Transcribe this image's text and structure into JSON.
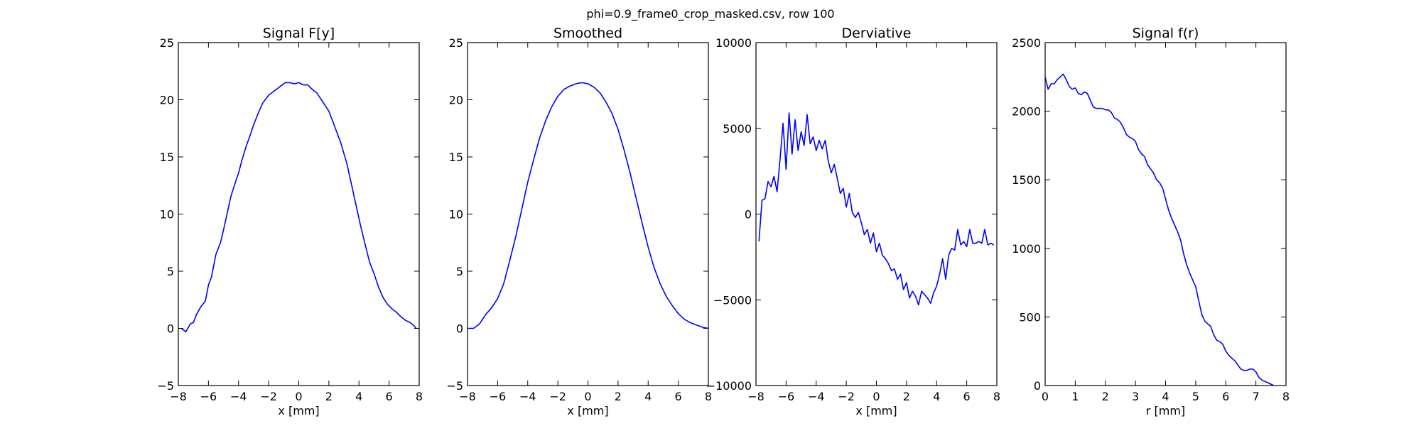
{
  "figure_title": "phi=0.9_frame0_crop_masked.csv, row 100",
  "colors": {
    "line": "#0000ff",
    "axes": "#000000",
    "background": "#ffffff"
  },
  "chart_data": [
    {
      "type": "line",
      "title": "Signal F[y]",
      "xlabel": "x [mm]",
      "ylabel": "",
      "xlim": [
        -8,
        8
      ],
      "ylim": [
        -5,
        25
      ],
      "xticks": [
        -8,
        -6,
        -4,
        -2,
        0,
        2,
        4,
        6,
        8
      ],
      "xtick_labels": [
        "−8",
        "−6",
        "−4",
        "−2",
        "0",
        "2",
        "4",
        "6",
        "8"
      ],
      "yticks": [
        -5,
        0,
        5,
        10,
        15,
        20,
        25
      ],
      "ytick_labels": [
        "−5",
        "0",
        "5",
        "10",
        "15",
        "20",
        "25"
      ],
      "grid": false,
      "series": [
        {
          "x": [
            -7.8,
            -7.5,
            -7.2,
            -7.0,
            -6.8,
            -6.5,
            -6.2,
            -6.0,
            -5.8,
            -5.5,
            -5.2,
            -5.0,
            -4.8,
            -4.5,
            -4.2,
            -4.0,
            -3.8,
            -3.5,
            -3.2,
            -3.0,
            -2.7,
            -2.4,
            -2.0,
            -1.6,
            -1.2,
            -0.9,
            -0.6,
            -0.3,
            0.0,
            0.3,
            0.6,
            0.9,
            1.2,
            1.6,
            2.0,
            2.4,
            2.8,
            3.2,
            3.5,
            3.8,
            4.1,
            4.4,
            4.7,
            5.0,
            5.3,
            5.6,
            5.9,
            6.2,
            6.5,
            6.8,
            7.1,
            7.4,
            7.6,
            7.8
          ],
          "y": [
            0.0,
            -0.3,
            0.4,
            0.5,
            1.2,
            1.9,
            2.4,
            3.8,
            4.5,
            6.5,
            7.5,
            8.6,
            9.8,
            11.6,
            12.8,
            13.6,
            14.6,
            15.9,
            17.0,
            17.8,
            18.8,
            19.7,
            20.4,
            20.8,
            21.2,
            21.5,
            21.5,
            21.4,
            21.5,
            21.3,
            21.3,
            20.9,
            20.6,
            19.8,
            19.0,
            17.6,
            16.2,
            14.4,
            12.6,
            10.8,
            9.0,
            7.4,
            5.8,
            4.8,
            3.6,
            2.7,
            2.1,
            1.7,
            1.4,
            1.0,
            0.7,
            0.5,
            0.3,
            0.0
          ]
        }
      ]
    },
    {
      "type": "line",
      "title": "Smoothed",
      "xlabel": "x [mm]",
      "ylabel": "",
      "xlim": [
        -8,
        8
      ],
      "ylim": [
        -5,
        25
      ],
      "xticks": [
        -8,
        -6,
        -4,
        -2,
        0,
        2,
        4,
        6,
        8
      ],
      "xtick_labels": [
        "−8",
        "−6",
        "−4",
        "−2",
        "0",
        "2",
        "4",
        "6",
        "8"
      ],
      "yticks": [
        -5,
        0,
        5,
        10,
        15,
        20,
        25
      ],
      "ytick_labels": [
        "−5",
        "0",
        "5",
        "10",
        "15",
        "20",
        "25"
      ],
      "grid": false,
      "series": [
        {
          "x": [
            -8.0,
            -7.6,
            -7.2,
            -6.8,
            -6.4,
            -6.0,
            -5.6,
            -5.2,
            -4.8,
            -4.4,
            -4.0,
            -3.6,
            -3.2,
            -2.8,
            -2.4,
            -2.0,
            -1.6,
            -1.2,
            -0.8,
            -0.4,
            0.0,
            0.4,
            0.8,
            1.2,
            1.6,
            2.0,
            2.4,
            2.8,
            3.2,
            3.6,
            4.0,
            4.4,
            4.8,
            5.2,
            5.6,
            6.0,
            6.4,
            6.8,
            7.2,
            7.6,
            8.0
          ],
          "y": [
            0.0,
            0.0,
            0.4,
            1.2,
            1.8,
            2.6,
            3.9,
            5.9,
            8.0,
            10.4,
            12.8,
            14.8,
            16.7,
            18.2,
            19.4,
            20.3,
            20.9,
            21.2,
            21.4,
            21.5,
            21.4,
            21.1,
            20.6,
            19.8,
            18.8,
            17.4,
            15.6,
            13.6,
            11.4,
            9.2,
            7.1,
            5.3,
            3.9,
            2.8,
            2.0,
            1.3,
            0.8,
            0.5,
            0.3,
            0.1,
            0.0
          ]
        }
      ]
    },
    {
      "type": "line",
      "title": "Derviative",
      "xlabel": "x [mm]",
      "ylabel": "",
      "xlim": [
        -8,
        8
      ],
      "ylim": [
        -10000,
        10000
      ],
      "xticks": [
        -8,
        -6,
        -4,
        -2,
        0,
        2,
        4,
        6,
        8
      ],
      "xtick_labels": [
        "−8",
        "−6",
        "−4",
        "−2",
        "0",
        "2",
        "4",
        "6",
        "8"
      ],
      "yticks": [
        -10000,
        -5000,
        0,
        5000,
        10000
      ],
      "ytick_labels": [
        "−10000",
        "−5000",
        "0",
        "5000",
        "10000"
      ],
      "grid": false,
      "series": [
        {
          "x": [
            -7.8,
            -7.6,
            -7.4,
            -7.2,
            -7.0,
            -6.8,
            -6.6,
            -6.4,
            -6.2,
            -6.0,
            -5.8,
            -5.6,
            -5.4,
            -5.2,
            -5.0,
            -4.8,
            -4.6,
            -4.4,
            -4.2,
            -4.0,
            -3.8,
            -3.6,
            -3.4,
            -3.2,
            -3.0,
            -2.8,
            -2.6,
            -2.4,
            -2.2,
            -2.0,
            -1.8,
            -1.6,
            -1.4,
            -1.2,
            -1.0,
            -0.8,
            -0.6,
            -0.4,
            -0.2,
            0.0,
            0.2,
            0.4,
            0.6,
            0.8,
            1.0,
            1.2,
            1.4,
            1.6,
            1.8,
            2.0,
            2.2,
            2.4,
            2.6,
            2.8,
            3.0,
            3.2,
            3.4,
            3.6,
            3.8,
            4.0,
            4.2,
            4.4,
            4.6,
            4.8,
            5.0,
            5.2,
            5.4,
            5.6,
            5.8,
            6.0,
            6.2,
            6.4,
            6.6,
            6.8,
            7.0,
            7.2,
            7.4,
            7.6,
            7.8
          ],
          "y": [
            -1600,
            800,
            900,
            1900,
            1600,
            2200,
            1300,
            3200,
            5300,
            2600,
            5900,
            3500,
            5500,
            3700,
            4800,
            4000,
            5800,
            4100,
            4500,
            3700,
            4300,
            3800,
            4300,
            3100,
            2400,
            2900,
            2100,
            1200,
            1500,
            400,
            1200,
            100,
            -200,
            100,
            -500,
            -1200,
            -900,
            -1700,
            -1100,
            -2200,
            -1700,
            -2400,
            -2600,
            -2900,
            -3300,
            -3200,
            -3800,
            -3500,
            -4400,
            -4000,
            -4900,
            -4500,
            -4800,
            -5300,
            -4500,
            -4700,
            -4900,
            -5200,
            -4600,
            -4200,
            -3500,
            -2600,
            -3800,
            -2400,
            -2000,
            -2100,
            -900,
            -1800,
            -1600,
            -1900,
            -900,
            -1700,
            -1700,
            -1600,
            -1700,
            -900,
            -1800,
            -1700,
            -1800
          ]
        }
      ]
    },
    {
      "type": "line",
      "title": "Signal f(r)",
      "xlabel": "r [mm]",
      "ylabel": "",
      "xlim": [
        0,
        8
      ],
      "ylim": [
        0,
        2500
      ],
      "xticks": [
        0,
        1,
        2,
        3,
        4,
        5,
        6,
        7,
        8
      ],
      "xtick_labels": [
        "0",
        "1",
        "2",
        "3",
        "4",
        "5",
        "6",
        "7",
        "8"
      ],
      "yticks": [
        0,
        500,
        1000,
        1500,
        2000,
        2500
      ],
      "ytick_labels": [
        "0",
        "500",
        "1000",
        "1500",
        "2000",
        "2500"
      ],
      "grid": false,
      "series": [
        {
          "x": [
            0.0,
            0.1,
            0.2,
            0.3,
            0.4,
            0.5,
            0.6,
            0.7,
            0.8,
            0.9,
            1.0,
            1.1,
            1.2,
            1.3,
            1.4,
            1.5,
            1.6,
            1.7,
            1.8,
            1.9,
            2.0,
            2.1,
            2.2,
            2.3,
            2.4,
            2.5,
            2.6,
            2.7,
            2.8,
            2.9,
            3.0,
            3.1,
            3.2,
            3.3,
            3.4,
            3.5,
            3.6,
            3.7,
            3.8,
            3.9,
            4.0,
            4.1,
            4.2,
            4.3,
            4.4,
            4.5,
            4.6,
            4.7,
            4.8,
            4.9,
            5.0,
            5.1,
            5.2,
            5.3,
            5.4,
            5.5,
            5.6,
            5.7,
            5.8,
            5.9,
            6.0,
            6.1,
            6.2,
            6.3,
            6.4,
            6.5,
            6.6,
            6.7,
            6.8,
            6.9,
            7.0,
            7.1,
            7.2,
            7.3,
            7.4,
            7.5,
            7.6
          ],
          "y": [
            2250,
            2160,
            2200,
            2200,
            2230,
            2250,
            2270,
            2230,
            2180,
            2160,
            2170,
            2130,
            2120,
            2140,
            2130,
            2080,
            2030,
            2020,
            2020,
            2020,
            2010,
            2010,
            1990,
            1950,
            1940,
            1920,
            1880,
            1830,
            1810,
            1800,
            1780,
            1720,
            1690,
            1670,
            1610,
            1580,
            1550,
            1500,
            1480,
            1440,
            1360,
            1280,
            1220,
            1170,
            1120,
            1060,
            960,
            880,
            820,
            770,
            720,
            620,
            520,
            470,
            450,
            430,
            370,
            330,
            320,
            300,
            250,
            220,
            200,
            180,
            150,
            120,
            110,
            110,
            120,
            120,
            100,
            60,
            40,
            30,
            20,
            10,
            0
          ]
        }
      ]
    }
  ]
}
